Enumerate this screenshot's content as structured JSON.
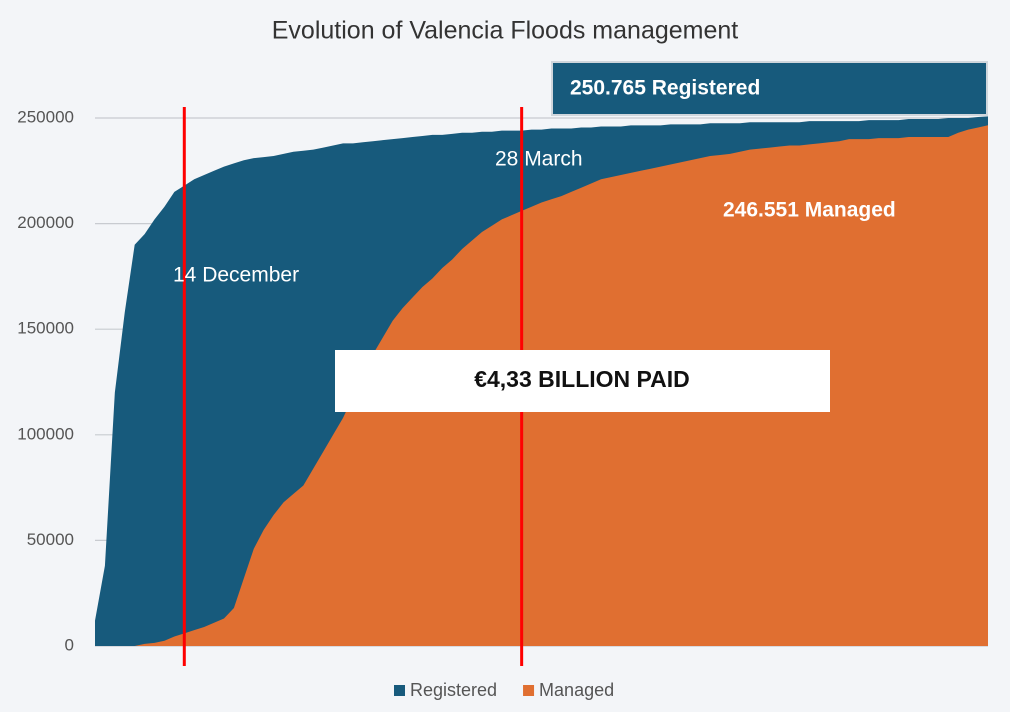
{
  "chart_data": {
    "type": "area",
    "title": "Evolution of Valencia Floods management",
    "categories": [
      null,
      null,
      null,
      null,
      null,
      null,
      null,
      null,
      null,
      null,
      null,
      null,
      null,
      null,
      null,
      null,
      null,
      null,
      null,
      null,
      null,
      null,
      null,
      null,
      null,
      null,
      null,
      null,
      null,
      null,
      null,
      null,
      null,
      null,
      null,
      null,
      null,
      null,
      null,
      null,
      null,
      null,
      null,
      null,
      null,
      null,
      null,
      null,
      null,
      null,
      null,
      null,
      null,
      null,
      null,
      null,
      null,
      null,
      null,
      null,
      null,
      null,
      null,
      null,
      null,
      null,
      null,
      null,
      null,
      null,
      null,
      null,
      null,
      null,
      null,
      null,
      null,
      null,
      null,
      null,
      null,
      null,
      null,
      null,
      null,
      null,
      null,
      null,
      null,
      null,
      null
    ],
    "series": [
      {
        "name": "Registered",
        "color": "#175a7c",
        "values": [
          12000,
          38000,
          120000,
          158000,
          190000,
          195000,
          202000,
          208000,
          215000,
          218000,
          221000,
          223000,
          225000,
          227000,
          228500,
          230000,
          231000,
          231500,
          232000,
          233000,
          234000,
          234500,
          235000,
          236000,
          237000,
          238000,
          238000,
          238500,
          239000,
          239500,
          240000,
          240500,
          241000,
          241500,
          242000,
          242000,
          242500,
          243000,
          243000,
          243500,
          243500,
          244000,
          244000,
          244000,
          244500,
          244500,
          245000,
          245000,
          245000,
          245500,
          245500,
          246000,
          246000,
          246000,
          246500,
          246500,
          246500,
          246500,
          247000,
          247000,
          247000,
          247000,
          247500,
          247500,
          247500,
          247500,
          248000,
          248000,
          248000,
          248000,
          248000,
          248000,
          248500,
          248500,
          248500,
          248500,
          248500,
          248500,
          249000,
          249000,
          249000,
          249000,
          249500,
          249500,
          249500,
          249500,
          250000,
          250000,
          250000,
          250500,
          250765
        ]
      },
      {
        "name": "Managed",
        "color": "#e06f31",
        "values": [
          0,
          0,
          0,
          0,
          0,
          1000,
          1500,
          2500,
          4500,
          6000,
          7500,
          9000,
          11000,
          13000,
          18000,
          32000,
          46000,
          55000,
          62000,
          68000,
          72000,
          76000,
          84000,
          92000,
          100000,
          108000,
          118000,
          128000,
          138000,
          146000,
          154000,
          160000,
          165000,
          170000,
          174000,
          179000,
          183000,
          188000,
          192000,
          196000,
          199000,
          202000,
          204000,
          206000,
          208000,
          210000,
          211500,
          213000,
          215000,
          217000,
          219000,
          221000,
          222000,
          223000,
          224000,
          225000,
          226000,
          227000,
          228000,
          229000,
          230000,
          231000,
          232000,
          232500,
          233000,
          234000,
          235000,
          235500,
          236000,
          236500,
          237000,
          237000,
          237500,
          238000,
          238500,
          239000,
          240000,
          240000,
          240000,
          240500,
          240500,
          240500,
          241000,
          241000,
          241000,
          241000,
          241000,
          243000,
          244500,
          245500,
          246551
        ]
      }
    ],
    "ylim": [
      0,
      250000
    ],
    "yticks": [
      0,
      50000,
      100000,
      150000,
      200000,
      250000
    ],
    "grid": true,
    "legend": "bottom",
    "date_lines": [
      {
        "label": "14 December",
        "index": 9,
        "color": "#ff0000"
      },
      {
        "label": "28 March",
        "index": 43,
        "color": "#ff0000"
      }
    ],
    "callouts": {
      "registered": "250.765 Registered",
      "managed": "246.551 Managed",
      "paid": "€4,33 BILLION PAID"
    }
  }
}
